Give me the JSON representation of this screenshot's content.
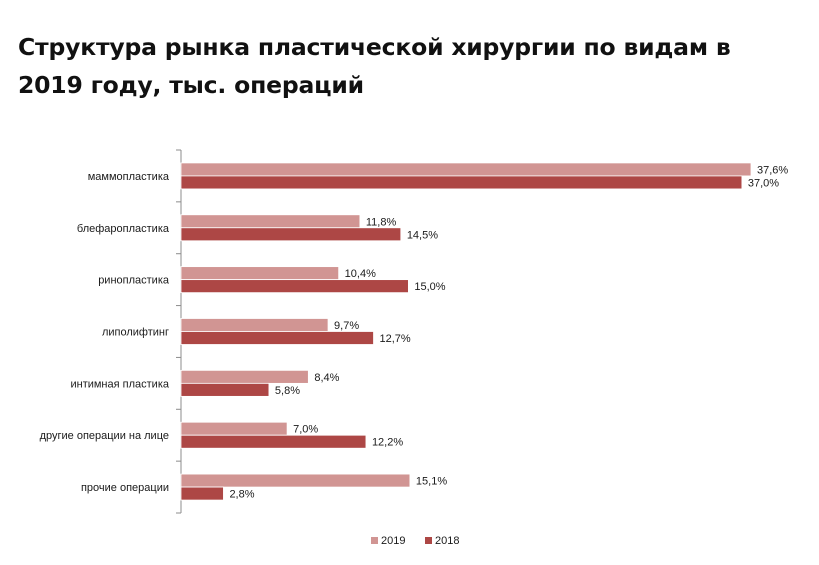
{
  "chart_data": {
    "type": "bar",
    "orientation": "horizontal",
    "title": "Структура рынка пластической хирургии по видам в 2019 году, тыс. операций",
    "categories": [
      "маммопластика",
      "блефаропластика",
      "ринопластика",
      "липолифтинг",
      "интимная пластика",
      "другие операции на лице",
      "прочие операции"
    ],
    "series": [
      {
        "name": "2019",
        "color": "#d19593",
        "values": [
          37.6,
          11.8,
          10.4,
          9.7,
          8.4,
          7.0,
          15.1
        ],
        "labels": [
          "37,6%",
          "11,8%",
          "10,4%",
          "9,7%",
          "8,4%",
          "7,0%",
          "15,1%"
        ]
      },
      {
        "name": "2018",
        "color": "#ad4745",
        "values": [
          37.0,
          14.5,
          15.0,
          12.7,
          5.8,
          12.2,
          2.8
        ],
        "labels": [
          "37,0%",
          "14,5%",
          "15,0%",
          "12,7%",
          "5,8%",
          "12,2%",
          "2,8%"
        ]
      }
    ],
    "xlim": [
      0,
      37.6
    ],
    "grid": false,
    "legend_position": "bottom"
  }
}
